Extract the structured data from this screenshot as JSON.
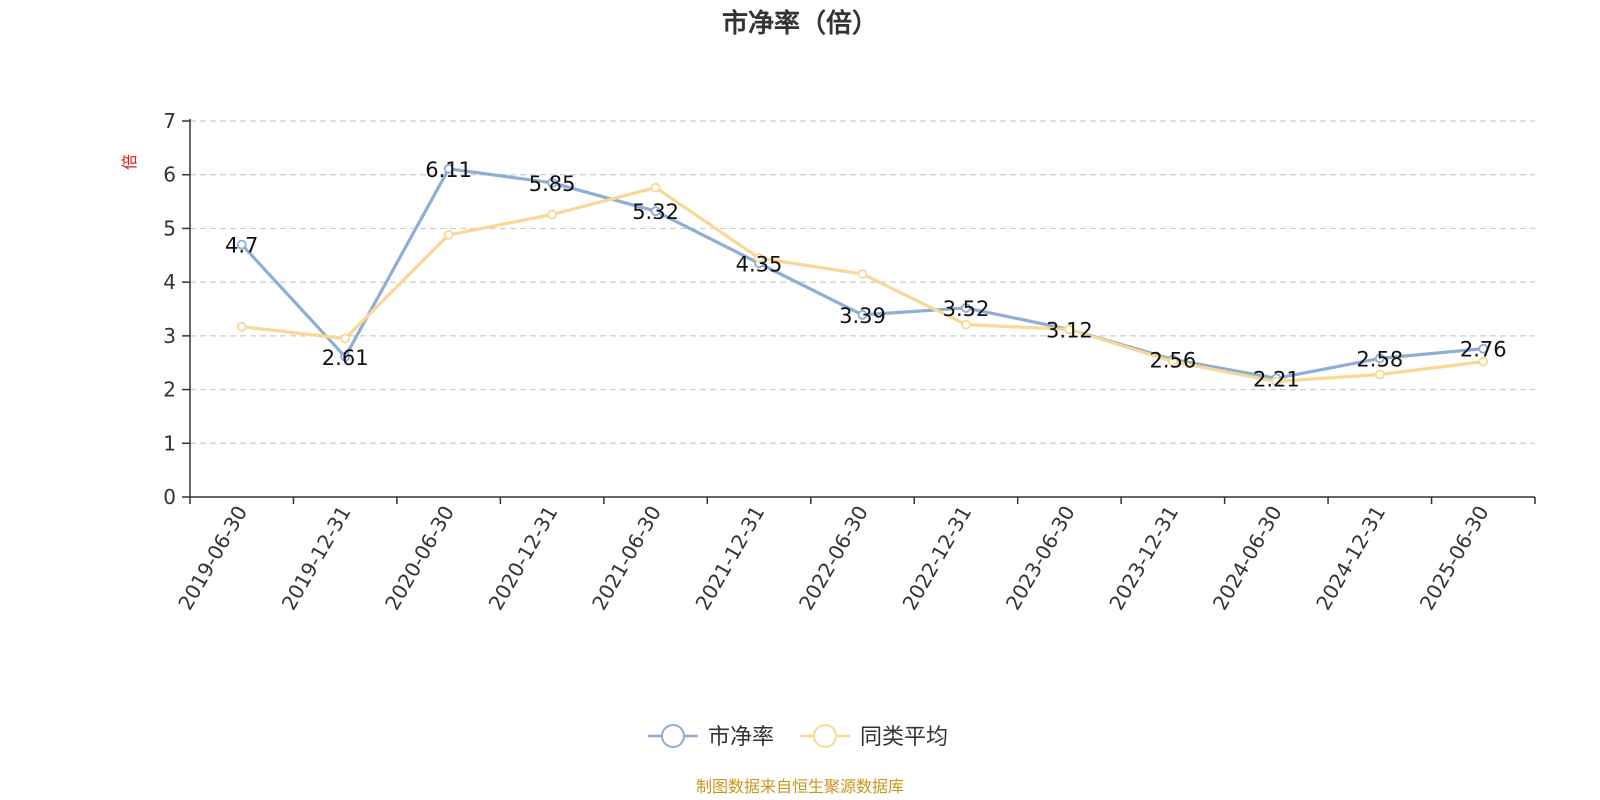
{
  "colors": {
    "series_pb": "#8eadd7",
    "series_avg": "#fad795",
    "axis": "#333333",
    "grid": "#cccccc",
    "unit": "#e31a1c",
    "source": "#c8961e"
  },
  "chart_data": {
    "type": "line",
    "title": "市净率（倍）",
    "ylabel": "倍",
    "ylim": [
      0,
      7
    ],
    "yticks": [
      0,
      1,
      2,
      3,
      4,
      5,
      6,
      7
    ],
    "grid": true,
    "legend_position": "bottom-center",
    "categories": [
      "2019-06-30",
      "2019-12-31",
      "2020-06-30",
      "2020-12-31",
      "2021-06-30",
      "2021-12-31",
      "2022-06-30",
      "2022-12-31",
      "2023-06-30",
      "2023-12-31",
      "2024-06-30",
      "2024-12-31",
      "2025-06-30"
    ],
    "series": [
      {
        "name": "市净率",
        "values": [
          4.7,
          2.61,
          6.11,
          5.85,
          5.32,
          4.35,
          3.39,
          3.52,
          3.12,
          2.56,
          2.21,
          2.58,
          2.76
        ],
        "labels": [
          "4.7",
          "2.61",
          "6.11",
          "5.85",
          "5.32",
          "4.35",
          "3.39",
          "3.52",
          "3.12",
          "2.56",
          "2.21",
          "2.58",
          "2.76"
        ]
      },
      {
        "name": "同类平均",
        "values": [
          3.17,
          2.95,
          4.88,
          5.26,
          5.76,
          4.45,
          4.15,
          3.21,
          3.12,
          2.52,
          2.15,
          2.28,
          2.52
        ]
      }
    ]
  },
  "source_text": "制图数据来自恒生聚源数据库"
}
